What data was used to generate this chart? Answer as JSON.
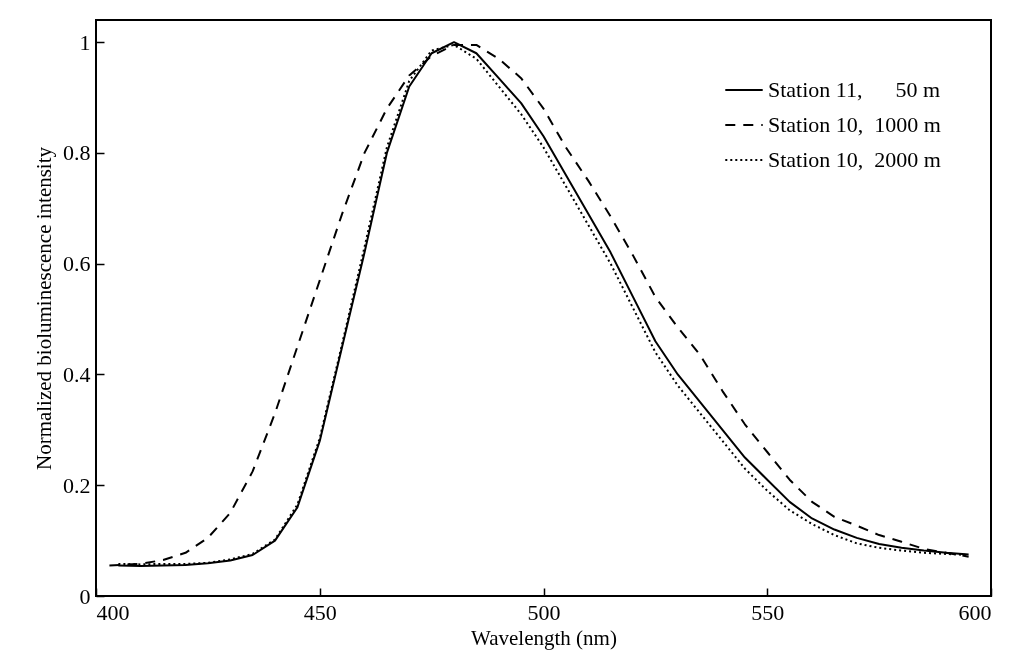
{
  "chart_data": {
    "type": "line",
    "xlabel": "Wavelength (nm)",
    "ylabel": "Normalized bioluminescence intensity",
    "xlim": [
      400,
      600
    ],
    "xticks": [
      400,
      450,
      500,
      550,
      600
    ],
    "ylim": [
      0,
      1.04
    ],
    "yticks": [
      0,
      0.2,
      0.4,
      0.6,
      0.8,
      1
    ],
    "grid": false,
    "legend": "top right",
    "marker": "none",
    "series": [
      {
        "name": "Station 11,      50 m",
        "color": "#000000",
        "line_style": "solid",
        "x": [
          405,
          410,
          415,
          420,
          425,
          430,
          435,
          440,
          445,
          450,
          455,
          460,
          465,
          470,
          475,
          480,
          485,
          490,
          495,
          500,
          505,
          510,
          515,
          520,
          525,
          530,
          535,
          540,
          545,
          550,
          555,
          560,
          565,
          570,
          575,
          580,
          585,
          590,
          595
        ],
        "values": [
          0.055,
          0.054,
          0.055,
          0.056,
          0.059,
          0.064,
          0.074,
          0.1,
          0.16,
          0.28,
          0.45,
          0.62,
          0.8,
          0.92,
          0.98,
          1.0,
          0.98,
          0.935,
          0.89,
          0.83,
          0.76,
          0.69,
          0.62,
          0.54,
          0.46,
          0.4,
          0.35,
          0.3,
          0.25,
          0.21,
          0.17,
          0.14,
          0.12,
          0.105,
          0.094,
          0.087,
          0.082,
          0.078,
          0.075
        ]
      },
      {
        "name": "Station 10,  1000 m",
        "color": "#000000",
        "line_style": "dashed",
        "x": [
          403,
          410,
          415,
          420,
          425,
          430,
          435,
          440,
          445,
          450,
          455,
          460,
          465,
          470,
          475,
          480,
          485,
          490,
          495,
          500,
          505,
          510,
          515,
          520,
          525,
          530,
          535,
          540,
          545,
          550,
          555,
          560,
          565,
          570,
          575,
          580,
          585,
          590,
          595
        ],
        "values": [
          0.055,
          0.058,
          0.065,
          0.078,
          0.105,
          0.15,
          0.225,
          0.33,
          0.45,
          0.57,
          0.69,
          0.8,
          0.88,
          0.94,
          0.975,
          0.995,
          0.995,
          0.97,
          0.935,
          0.88,
          0.81,
          0.75,
          0.685,
          0.615,
          0.54,
          0.485,
          0.435,
          0.37,
          0.31,
          0.26,
          0.21,
          0.17,
          0.143,
          0.127,
          0.11,
          0.098,
          0.085,
          0.078,
          0.071
        ]
      },
      {
        "name": "Station 10,  2000 m",
        "color": "#000000",
        "line_style": "dotted",
        "x": [
          405,
          410,
          415,
          420,
          425,
          430,
          435,
          440,
          445,
          450,
          455,
          460,
          465,
          470,
          475,
          480,
          485,
          490,
          495,
          500,
          505,
          510,
          515,
          520,
          525,
          530,
          535,
          540,
          545,
          550,
          555,
          560,
          565,
          570,
          575,
          580,
          585,
          590,
          595
        ],
        "values": [
          0.058,
          0.057,
          0.058,
          0.058,
          0.06,
          0.066,
          0.076,
          0.102,
          0.165,
          0.285,
          0.455,
          0.63,
          0.81,
          0.93,
          0.985,
          0.995,
          0.97,
          0.92,
          0.87,
          0.81,
          0.74,
          0.67,
          0.6,
          0.52,
          0.44,
          0.38,
          0.33,
          0.28,
          0.23,
          0.19,
          0.155,
          0.13,
          0.11,
          0.095,
          0.087,
          0.082,
          0.078,
          0.076,
          0.074
        ]
      }
    ]
  }
}
